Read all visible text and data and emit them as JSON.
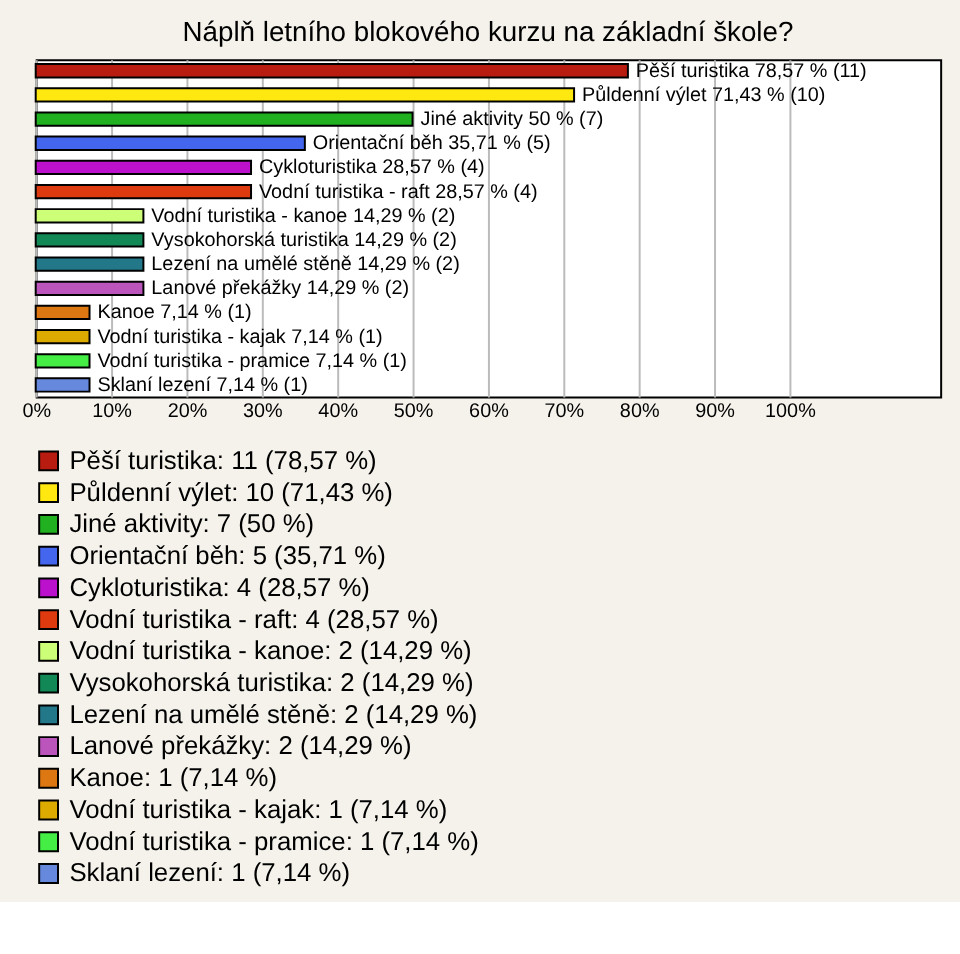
{
  "chart_data": {
    "type": "bar",
    "orientation": "horizontal",
    "title": "Náplň letního blokového kurzu na základní škole?",
    "categories": [
      null,
      null,
      null,
      null,
      null,
      null,
      null,
      null,
      null,
      null,
      null,
      null,
      null,
      null
    ],
    "series": [
      {
        "name": "Pěší turistika: 11 (78,57 %)",
        "color": "#b81c10",
        "values": [
          78.57,
          null,
          null,
          null,
          null,
          null,
          null,
          null,
          null,
          null,
          null,
          null,
          null,
          null
        ],
        "value_labels": [
          "Pěší turistika 78,57 % (11)",
          null,
          null,
          null,
          null,
          null,
          null,
          null,
          null,
          null,
          null,
          null,
          null,
          null
        ]
      },
      {
        "name": "Půldenní výlet: 10 (71,43 %)",
        "color": "#ffe810",
        "values": [
          null,
          71.43,
          null,
          null,
          null,
          null,
          null,
          null,
          null,
          null,
          null,
          null,
          null,
          null
        ],
        "value_labels": [
          null,
          "Půldenní výlet 71,43 % (10)",
          null,
          null,
          null,
          null,
          null,
          null,
          null,
          null,
          null,
          null,
          null,
          null
        ]
      },
      {
        "name": "Jiné aktivity: 7 (50 %)",
        "color": "#20b020",
        "values": [
          null,
          null,
          50,
          null,
          null,
          null,
          null,
          null,
          null,
          null,
          null,
          null,
          null,
          null
        ],
        "value_labels": [
          null,
          null,
          "Jiné aktivity 50 % (7)",
          null,
          null,
          null,
          null,
          null,
          null,
          null,
          null,
          null,
          null,
          null
        ]
      },
      {
        "name": "Orientační běh: 5 (35,71 %)",
        "color": "#4466ee",
        "values": [
          null,
          null,
          null,
          35.71,
          null,
          null,
          null,
          null,
          null,
          null,
          null,
          null,
          null,
          null
        ],
        "value_labels": [
          null,
          null,
          null,
          "Orientační běh 35,71 % (5)",
          null,
          null,
          null,
          null,
          null,
          null,
          null,
          null,
          null,
          null
        ]
      },
      {
        "name": "Cykloturistika: 4 (28,57 %)",
        "color": "#bb10cc",
        "values": [
          null,
          null,
          null,
          null,
          28.57,
          null,
          null,
          null,
          null,
          null,
          null,
          null,
          null,
          null
        ],
        "value_labels": [
          null,
          null,
          null,
          null,
          "Cykloturistika 28,57 % (4)",
          null,
          null,
          null,
          null,
          null,
          null,
          null,
          null,
          null
        ]
      },
      {
        "name": "Vodní turistika - raft: 4 (28,57 %)",
        "color": "#dd3a10",
        "values": [
          null,
          null,
          null,
          null,
          null,
          28.57,
          null,
          null,
          null,
          null,
          null,
          null,
          null,
          null
        ],
        "value_labels": [
          null,
          null,
          null,
          null,
          null,
          "Vodní turistika - raft 28,57 % (4)",
          null,
          null,
          null,
          null,
          null,
          null,
          null,
          null
        ]
      },
      {
        "name": "Vodní turistika - kanoe: 2 (14,29 %)",
        "color": "#ccff77",
        "values": [
          null,
          null,
          null,
          null,
          null,
          null,
          14.29,
          null,
          null,
          null,
          null,
          null,
          null,
          null
        ],
        "value_labels": [
          null,
          null,
          null,
          null,
          null,
          null,
          "Vodní turistika - kanoe 14,29 % (2)",
          null,
          null,
          null,
          null,
          null,
          null,
          null
        ]
      },
      {
        "name": "Vysokohorská turistika: 2 (14,29 %)",
        "color": "#118855",
        "values": [
          null,
          null,
          null,
          null,
          null,
          null,
          null,
          14.29,
          null,
          null,
          null,
          null,
          null,
          null
        ],
        "value_labels": [
          null,
          null,
          null,
          null,
          null,
          null,
          null,
          "Vysokohorská turistika 14,29 % (2)",
          null,
          null,
          null,
          null,
          null,
          null
        ]
      },
      {
        "name": "Lezení na umělé stěně: 2 (14,29 %)",
        "color": "#227788",
        "values": [
          null,
          null,
          null,
          null,
          null,
          null,
          null,
          null,
          14.29,
          null,
          null,
          null,
          null,
          null
        ],
        "value_labels": [
          null,
          null,
          null,
          null,
          null,
          null,
          null,
          null,
          "Lezení na umělé stěně 14,29 % (2)",
          null,
          null,
          null,
          null,
          null
        ]
      },
      {
        "name": "Lanové překážky: 2 (14,29 %)",
        "color": "#bb55bb",
        "values": [
          null,
          null,
          null,
          null,
          null,
          null,
          null,
          null,
          null,
          14.29,
          null,
          null,
          null,
          null
        ],
        "value_labels": [
          null,
          null,
          null,
          null,
          null,
          null,
          null,
          null,
          null,
          "Lanové překážky 14,29 % (2)",
          null,
          null,
          null,
          null
        ]
      },
      {
        "name": "Kanoe: 1 (7,14 %)",
        "color": "#dd7711",
        "values": [
          null,
          null,
          null,
          null,
          null,
          null,
          null,
          null,
          null,
          null,
          7.14,
          null,
          null,
          null
        ],
        "value_labels": [
          null,
          null,
          null,
          null,
          null,
          null,
          null,
          null,
          null,
          null,
          "Kanoe 7,14 % (1)",
          null,
          null,
          null
        ]
      },
      {
        "name": "Vodní turistika - kajak: 1 (7,14 %)",
        "color": "#ddaa00",
        "values": [
          null,
          null,
          null,
          null,
          null,
          null,
          null,
          null,
          null,
          null,
          null,
          7.14,
          null,
          null
        ],
        "value_labels": [
          null,
          null,
          null,
          null,
          null,
          null,
          null,
          null,
          null,
          null,
          null,
          "Vodní turistika - kajak 7,14 % (1)",
          null,
          null
        ]
      },
      {
        "name": "Vodní turistika - pramice: 1 (7,14 %)",
        "color": "#44ee44",
        "values": [
          null,
          null,
          null,
          null,
          null,
          null,
          null,
          null,
          null,
          null,
          null,
          null,
          7.14,
          null
        ],
        "value_labels": [
          null,
          null,
          null,
          null,
          null,
          null,
          null,
          null,
          null,
          null,
          null,
          null,
          "Vodní turistika - pramice 7,14 % (1)",
          null
        ]
      },
      {
        "name": "Sklaní lezení: 1 (7,14 %)",
        "color": "#6688dd",
        "values": [
          null,
          null,
          null,
          null,
          null,
          null,
          null,
          null,
          null,
          null,
          null,
          null,
          null,
          7.14
        ],
        "value_labels": [
          null,
          null,
          null,
          null,
          null,
          null,
          null,
          null,
          null,
          null,
          null,
          null,
          null,
          "Sklaní lezení 7,14 % (1)"
        ]
      }
    ],
    "xlim": [
      0,
      120
    ],
    "xticks": [
      {
        "value": 0,
        "label": "0%"
      },
      {
        "value": 10,
        "label": "10%"
      },
      {
        "value": 20,
        "label": "20%"
      },
      {
        "value": 30,
        "label": "30%"
      },
      {
        "value": 40,
        "label": "40%"
      },
      {
        "value": 50,
        "label": "50%"
      },
      {
        "value": 60,
        "label": "60%"
      },
      {
        "value": 70,
        "label": "70%"
      },
      {
        "value": 80,
        "label": "80%"
      },
      {
        "value": 90,
        "label": "90%"
      },
      {
        "value": 100,
        "label": "100%"
      }
    ],
    "tick_labels": "x",
    "grid": "x",
    "legend": "bottom"
  }
}
